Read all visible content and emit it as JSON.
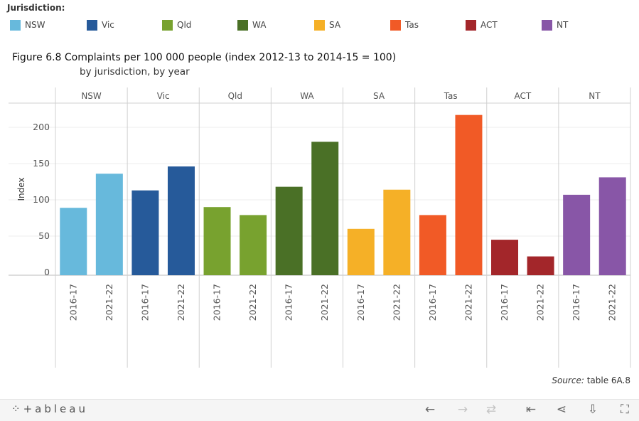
{
  "legend": {
    "title": "Jurisdiction:",
    "items": [
      {
        "label": "NSW",
        "color": "#67b9dc"
      },
      {
        "label": "Vic",
        "color": "#265a9a"
      },
      {
        "label": "Qld",
        "color": "#78a22f"
      },
      {
        "label": "WA",
        "color": "#4a7026"
      },
      {
        "label": "SA",
        "color": "#f5b027"
      },
      {
        "label": "Tas",
        "color": "#f15a26"
      },
      {
        "label": "ACT",
        "color": "#a3262a"
      },
      {
        "label": "NT",
        "color": "#8856a7"
      }
    ]
  },
  "title": "Figure 6.8 Complaints per 100 000 people (index 2012-13 to 2014-15 = 100)",
  "subtitle": "by jurisdiction, by year",
  "source": {
    "label": "Source:",
    "text": " table 6A.8"
  },
  "toolbar": {
    "logo": "+ableau",
    "buttons": [
      {
        "name": "undo-button",
        "icon": "←",
        "enabled": true
      },
      {
        "name": "redo-button",
        "icon": "→",
        "enabled": false
      },
      {
        "name": "revert-button",
        "icon": "⇄",
        "enabled": false
      },
      {
        "name": "reset-button",
        "icon": "⇤",
        "enabled": true
      },
      {
        "name": "share-button",
        "icon": "⋖",
        "enabled": true
      },
      {
        "name": "download-button",
        "icon": "⇩",
        "enabled": true
      },
      {
        "name": "fullscreen-button",
        "icon": "⛶",
        "enabled": true
      }
    ]
  },
  "chart_data": {
    "type": "bar",
    "ylabel": "Index",
    "ylim": [
      0,
      225
    ],
    "yticks": [
      0,
      50,
      100,
      150,
      200
    ],
    "grid": true,
    "categories": [
      "2016-17",
      "2021-22"
    ],
    "series": [
      {
        "name": "NSW",
        "color": "#67b9dc",
        "values": [
          89,
          136
        ]
      },
      {
        "name": "Vic",
        "color": "#265a9a",
        "values": [
          113,
          146
        ]
      },
      {
        "name": "Qld",
        "color": "#78a22f",
        "values": [
          90,
          79
        ]
      },
      {
        "name": "WA",
        "color": "#4a7026",
        "values": [
          118,
          180
        ]
      },
      {
        "name": "SA",
        "color": "#f5b027",
        "values": [
          60,
          114
        ]
      },
      {
        "name": "Tas",
        "color": "#f15a26",
        "values": [
          79,
          217
        ]
      },
      {
        "name": "ACT",
        "color": "#a3262a",
        "values": [
          45,
          22
        ]
      },
      {
        "name": "NT",
        "color": "#8856a7",
        "values": [
          107,
          131
        ]
      }
    ]
  }
}
